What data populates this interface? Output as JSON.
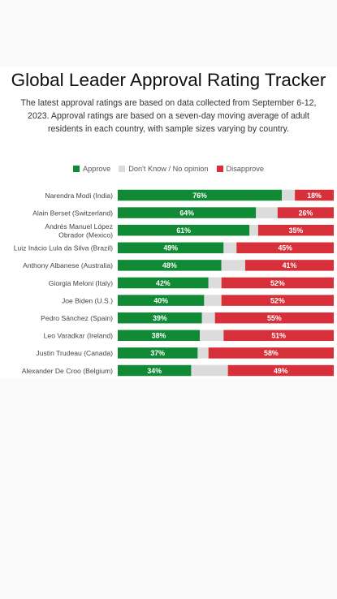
{
  "header": {
    "title": "Global Leader Approval Rating Tracker",
    "subtitle": "The latest approval ratings are based on data collected from September 6-12, 2023. Approval ratings are based on a seven-day moving average of adult residents in each country, with sample sizes varying by country."
  },
  "colors": {
    "approve": "#118a36",
    "neutral": "#dcdcdc",
    "disapprove": "#d7303a"
  },
  "chart_data": {
    "type": "bar",
    "orientation": "horizontal",
    "stacked": true,
    "title": "Global Leader Approval Rating Tracker",
    "xlim": [
      0,
      100
    ],
    "legend_position": "top",
    "categories": [
      [
        "Narendra Modi (India)"
      ],
      [
        "Alain Berset (Switzerland)"
      ],
      [
        "Andrés Manuel López",
        "Obrador (Mexico)"
      ],
      [
        "Luiz Inácio Lula da Silva (Brazil)"
      ],
      [
        "Anthony Albanese (Australia)"
      ],
      [
        "Giorgia Meloni (Italy)"
      ],
      [
        "Joe Biden (U.S.)"
      ],
      [
        "Pedro Sánchez (Spain)"
      ],
      [
        "Leo Varadkar (Ireland)"
      ],
      [
        "Justin Trudeau (Canada)"
      ],
      [
        "Alexander De Croo (Belgium)"
      ]
    ],
    "series": [
      {
        "name": "Approve",
        "values": [
          76,
          64,
          61,
          49,
          48,
          42,
          40,
          39,
          38,
          37,
          34
        ]
      },
      {
        "name": "Don't Know / No opinion",
        "values": [
          6,
          10,
          4,
          6,
          11,
          6,
          8,
          6,
          11,
          5,
          17
        ]
      },
      {
        "name": "Disapprove",
        "values": [
          18,
          26,
          35,
          45,
          41,
          52,
          52,
          55,
          51,
          58,
          49
        ]
      }
    ],
    "value_labels": {
      "approve": [
        "76%",
        "64%",
        "61%",
        "49%",
        "48%",
        "42%",
        "40%",
        "39%",
        "38%",
        "37%",
        "34%"
      ],
      "disapprove": [
        "18%",
        "26%",
        "35%",
        "45%",
        "41%",
        "52%",
        "52%",
        "55%",
        "51%",
        "58%",
        "49%"
      ]
    }
  }
}
